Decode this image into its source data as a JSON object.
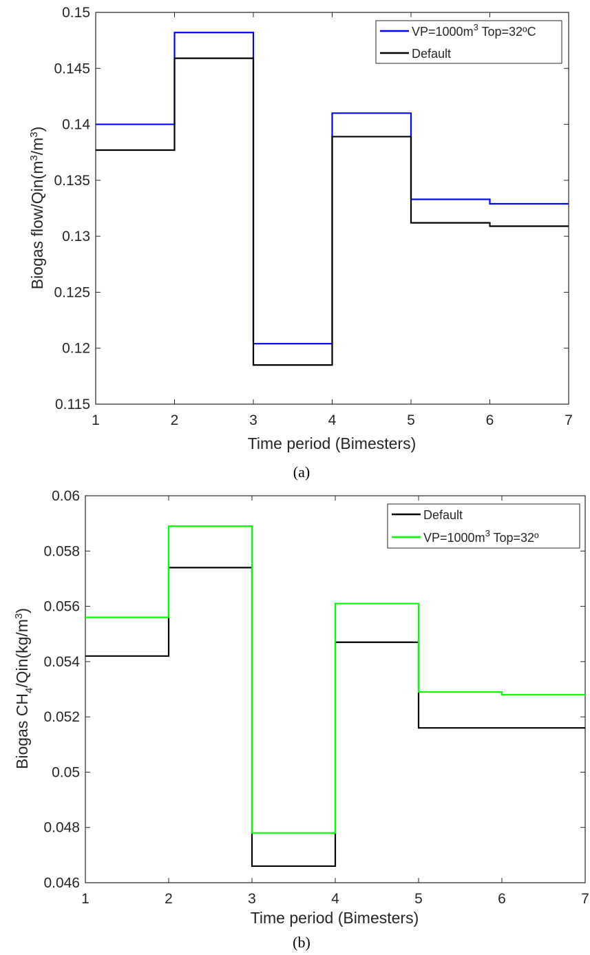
{
  "chart_data": [
    {
      "type": "line",
      "step": "post",
      "caption": "(a)",
      "xlabel": "Time period (Bimesters)",
      "ylabel": "Biogas flow/Qin(m3/m3)",
      "xlim": [
        1,
        7
      ],
      "ylim": [
        0.115,
        0.15
      ],
      "xticks": [
        1,
        2,
        3,
        4,
        5,
        6,
        7
      ],
      "yticks": [
        0.115,
        0.12,
        0.125,
        0.13,
        0.135,
        0.14,
        0.145,
        0.15
      ],
      "ytick_labels": [
        "0.115",
        "0.12",
        "0.125",
        "0.13",
        "0.135",
        "0.14",
        "0.145",
        "0.15"
      ],
      "grid": false,
      "legend_position": "top-right",
      "x": [
        1,
        2,
        3,
        4,
        5,
        6,
        7
      ],
      "series": [
        {
          "name": "VP=1000m3 Top=32ºC",
          "color": "#0000ff",
          "values": [
            0.14,
            0.1482,
            0.1204,
            0.141,
            0.1333,
            0.1329,
            0.1329
          ]
        },
        {
          "name": "Default",
          "color": "#000000",
          "values": [
            0.1377,
            0.1459,
            0.1185,
            0.1389,
            0.1312,
            0.1309,
            0.1309
          ]
        }
      ]
    },
    {
      "type": "line",
      "step": "post",
      "caption": "(b)",
      "xlabel": "Time period (Bimesters)",
      "ylabel": "Biogas CH4/Qin(kg/m3)",
      "xlim": [
        1,
        7
      ],
      "ylim": [
        0.046,
        0.06
      ],
      "xticks": [
        1,
        2,
        3,
        4,
        5,
        6,
        7
      ],
      "yticks": [
        0.046,
        0.048,
        0.05,
        0.052,
        0.054,
        0.056,
        0.058,
        0.06
      ],
      "ytick_labels": [
        "0.046",
        "0.048",
        "0.05",
        "0.052",
        "0.054",
        "0.056",
        "0.058",
        "0.06"
      ],
      "grid": false,
      "legend_position": "top-right",
      "x": [
        1,
        2,
        3,
        4,
        5,
        6,
        7
      ],
      "series": [
        {
          "name": "Default",
          "color": "#000000",
          "values": [
            0.0542,
            0.0574,
            0.0466,
            0.0547,
            0.0516,
            0.0516,
            0.0516
          ]
        },
        {
          "name": "VP=1000m3  Top=32º",
          "color": "#00ff00",
          "values": [
            0.0556,
            0.0589,
            0.0478,
            0.0561,
            0.0529,
            0.0528,
            0.0528
          ]
        }
      ]
    }
  ]
}
